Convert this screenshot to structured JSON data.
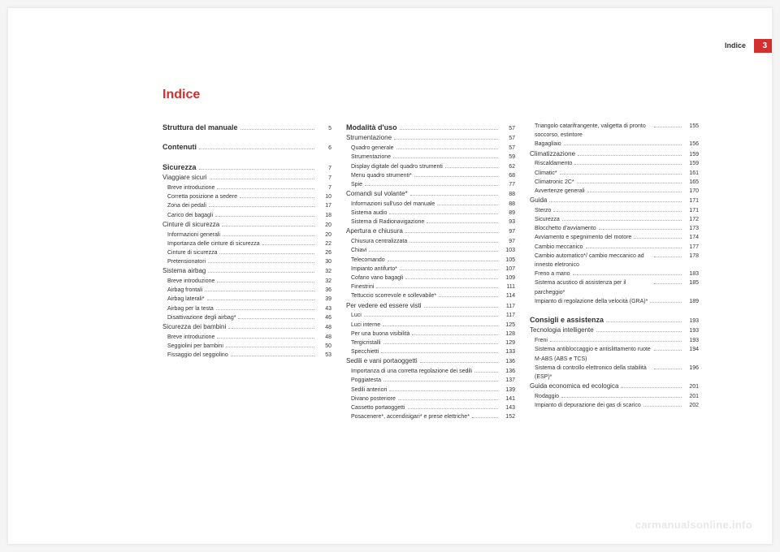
{
  "header": {
    "section": "Indice",
    "pageNumber": "3"
  },
  "title": "Indice",
  "watermark": "carmanualsonline.info",
  "columns": [
    [
      {
        "style": "bold",
        "label": "Struttura del manuale",
        "page": "5"
      },
      {
        "style": "spacer"
      },
      {
        "style": "bold",
        "label": "Contenuti",
        "page": "6"
      },
      {
        "style": "spacer"
      },
      {
        "style": "bold",
        "label": "Sicurezza",
        "page": "7"
      },
      {
        "style": "mid",
        "label": "Viaggiare sicuri",
        "page": "7"
      },
      {
        "style": "sub",
        "label": "Breve introduzione",
        "page": "7"
      },
      {
        "style": "sub",
        "label": "Corretta posizione a sedere",
        "page": "10"
      },
      {
        "style": "sub",
        "label": "Zona dei pedali",
        "page": "17"
      },
      {
        "style": "sub",
        "label": "Carico dei bagagli",
        "page": "18"
      },
      {
        "style": "mid",
        "label": "Cinture di sicurezza",
        "page": "20"
      },
      {
        "style": "sub",
        "label": "Informazioni generali",
        "page": "20"
      },
      {
        "style": "sub",
        "label": "Importanza delle cinture di sicurezza",
        "page": "22"
      },
      {
        "style": "sub",
        "label": "Cinture di sicurezza",
        "page": "26"
      },
      {
        "style": "sub",
        "label": "Pretensionatori",
        "page": "30"
      },
      {
        "style": "mid",
        "label": "Sistema airbag",
        "page": "32"
      },
      {
        "style": "sub",
        "label": "Breve introduzione",
        "page": "32"
      },
      {
        "style": "sub",
        "label": "Airbag frontali",
        "page": "36"
      },
      {
        "style": "sub",
        "label": "Airbag laterali*",
        "page": "39"
      },
      {
        "style": "sub",
        "label": "Airbag per la testa",
        "page": "43"
      },
      {
        "style": "sub",
        "label": "Disattivazione degli airbag*",
        "page": "46"
      },
      {
        "style": "mid",
        "label": "Sicurezza dei bambini",
        "page": "48"
      },
      {
        "style": "sub",
        "label": "Breve introduzione",
        "page": "48"
      },
      {
        "style": "sub",
        "label": "Seggiolini per bambini",
        "page": "50"
      },
      {
        "style": "sub",
        "label": "Fissaggio del seggiolino",
        "page": "53"
      }
    ],
    [
      {
        "style": "bold",
        "label": "Modalità d'uso",
        "page": "57"
      },
      {
        "style": "mid",
        "label": "Strumentazione",
        "page": "57"
      },
      {
        "style": "sub",
        "label": "Quadro generale",
        "page": "57"
      },
      {
        "style": "sub",
        "label": "Strumentazione",
        "page": "59"
      },
      {
        "style": "sub",
        "label": "Display digitale del quadro strumenti",
        "page": "62"
      },
      {
        "style": "sub",
        "label": "Menu quadro strumenti*",
        "page": "68"
      },
      {
        "style": "sub",
        "label": "Spie",
        "page": "77"
      },
      {
        "style": "mid",
        "label": "Comandi sul volante*",
        "page": "88"
      },
      {
        "style": "sub",
        "label": "Informazioni sull'uso del manuale",
        "page": "88"
      },
      {
        "style": "sub",
        "label": "Sistema audio",
        "page": "89"
      },
      {
        "style": "sub",
        "label": "Sistema di Radionavigazione",
        "page": "93"
      },
      {
        "style": "mid",
        "label": "Apertura e chiusura",
        "page": "97"
      },
      {
        "style": "sub",
        "label": "Chiusura centralizzata",
        "page": "97"
      },
      {
        "style": "sub",
        "label": "Chiavi",
        "page": "103"
      },
      {
        "style": "sub",
        "label": "Telecomando",
        "page": "105"
      },
      {
        "style": "sub",
        "label": "Impianto antifurto*",
        "page": "107"
      },
      {
        "style": "sub",
        "label": "Cofano vano bagagli",
        "page": "109"
      },
      {
        "style": "sub",
        "label": "Finestrini",
        "page": "111"
      },
      {
        "style": "sub",
        "label": "Tettuccio scorrevole e sollevabile*",
        "page": "114"
      },
      {
        "style": "mid",
        "label": "Per vedere ed essere visti",
        "page": "117"
      },
      {
        "style": "sub",
        "label": "Luci",
        "page": "117"
      },
      {
        "style": "sub",
        "label": "Luci interne",
        "page": "125"
      },
      {
        "style": "sub",
        "label": "Per una buona visibilità",
        "page": "128"
      },
      {
        "style": "sub",
        "label": "Tergicristalli",
        "page": "129"
      },
      {
        "style": "sub",
        "label": "Specchietti",
        "page": "133"
      },
      {
        "style": "mid",
        "label": "Sedili e vani portaoggetti",
        "page": "136"
      },
      {
        "style": "sub",
        "label": "Importanza di una corretta regolazione dei sedili",
        "page": "136"
      },
      {
        "style": "sub",
        "label": "Poggiatesta",
        "page": "137"
      },
      {
        "style": "sub",
        "label": "Sedili anteriori",
        "page": "139"
      },
      {
        "style": "sub",
        "label": "Divano posteriore",
        "page": "141"
      },
      {
        "style": "sub",
        "label": "Cassetto portaoggetti",
        "page": "143"
      },
      {
        "style": "sub",
        "label": "Posacenere*, accendisigari* e prese elettriche*",
        "page": "152"
      }
    ],
    [
      {
        "style": "sub",
        "label": "Triangolo catarifrangente, valigetta di pronto soccorso, estintore",
        "page": "155",
        "wrap": true
      },
      {
        "style": "sub",
        "label": "Bagagliaio",
        "page": "156"
      },
      {
        "style": "mid",
        "label": "Climatizzazione",
        "page": "159"
      },
      {
        "style": "sub",
        "label": "Riscaldamento",
        "page": "159"
      },
      {
        "style": "sub",
        "label": "Climatic*",
        "page": "161"
      },
      {
        "style": "sub",
        "label": "Climatronic 2C*",
        "page": "165"
      },
      {
        "style": "sub",
        "label": "Avvertenze generali",
        "page": "170"
      },
      {
        "style": "mid",
        "label": "Guida",
        "page": "171"
      },
      {
        "style": "sub",
        "label": "Sterzo",
        "page": "171"
      },
      {
        "style": "sub",
        "label": "Sicurezza",
        "page": "172"
      },
      {
        "style": "sub",
        "label": "Blocchetto d'avviamento",
        "page": "173"
      },
      {
        "style": "sub",
        "label": "Avviamento e spegnimento del motore",
        "page": "174"
      },
      {
        "style": "sub",
        "label": "Cambio meccanico",
        "page": "177"
      },
      {
        "style": "sub",
        "label": "Cambio automatico*/ cambio meccanico ad innesto eletronico",
        "page": "178",
        "wrap": true
      },
      {
        "style": "sub",
        "label": "Freno a mano",
        "page": "183"
      },
      {
        "style": "sub",
        "label": "Sistema acustico di assistenza per il parcheggio*",
        "page": "185",
        "wrap": true
      },
      {
        "style": "sub",
        "label": "Impianto di regolazione della velocità (GRA)*",
        "page": "189"
      },
      {
        "style": "spacer"
      },
      {
        "style": "bold",
        "label": "Consigli e assistenza",
        "page": "193"
      },
      {
        "style": "mid",
        "label": "Tecnologia intelligente",
        "page": "193"
      },
      {
        "style": "sub",
        "label": "Freni",
        "page": "193"
      },
      {
        "style": "sub",
        "label": "Sistema antibloccaggio e antislittamento ruote M-ABS (ABS e TCS)",
        "page": "194",
        "wrap": true
      },
      {
        "style": "sub",
        "label": "Sistema di controllo elettronico della stabilità (ESP)*",
        "page": "196",
        "wrap": true
      },
      {
        "style": "mid",
        "label": "Guida economica ed ecologica",
        "page": "201"
      },
      {
        "style": "sub",
        "label": "Rodaggio",
        "page": "201"
      },
      {
        "style": "sub",
        "label": "Impianto di depurazione dei gas di scarico",
        "page": "202"
      }
    ]
  ]
}
